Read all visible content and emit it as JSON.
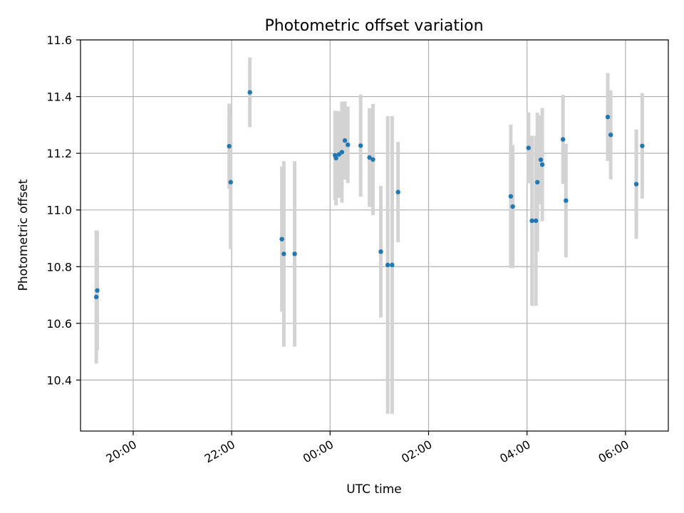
{
  "chart_data": {
    "type": "scatter",
    "title": "Photometric offset variation",
    "xlabel": "UTC time",
    "ylabel": "Photometric offset",
    "x_unit": "hours",
    "xlim": [
      -5.07,
      6.87
    ],
    "ylim": [
      10.22,
      11.6
    ],
    "grid": true,
    "x_ticks": [
      {
        "value": -4.0,
        "label": "20:00"
      },
      {
        "value": -2.0,
        "label": "22:00"
      },
      {
        "value": 0.0,
        "label": "00:00"
      },
      {
        "value": 2.0,
        "label": "02:00"
      },
      {
        "value": 4.0,
        "label": "04:00"
      },
      {
        "value": 6.0,
        "label": "06:00"
      }
    ],
    "y_ticks": [
      10.4,
      10.6,
      10.8,
      11.0,
      11.2,
      11.4,
      11.6
    ],
    "y_tick_labels": [
      "10.4",
      "10.6",
      "10.8",
      "11.0",
      "11.2",
      "11.4",
      "11.6"
    ],
    "point_color": "#1f77b4",
    "errorbar_color": "#d3d3d3",
    "points": [
      {
        "x": -4.75,
        "y": 10.693,
        "err": 0.235
      },
      {
        "x": -4.73,
        "y": 10.716,
        "err": 0.21
      },
      {
        "x": -2.05,
        "y": 11.225,
        "err": 0.15
      },
      {
        "x": -2.02,
        "y": 11.098,
        "err": 0.236
      },
      {
        "x": -1.63,
        "y": 11.415,
        "err": 0.123
      },
      {
        "x": -0.98,
        "y": 10.897,
        "err": 0.256
      },
      {
        "x": -0.94,
        "y": 10.845,
        "err": 0.327
      },
      {
        "x": -0.72,
        "y": 10.845,
        "err": 0.327
      },
      {
        "x": 0.1,
        "y": 11.193,
        "err": 0.157
      },
      {
        "x": 0.12,
        "y": 11.183,
        "err": 0.167
      },
      {
        "x": 0.18,
        "y": 11.196,
        "err": 0.153
      },
      {
        "x": 0.24,
        "y": 11.204,
        "err": 0.178
      },
      {
        "x": 0.3,
        "y": 11.245,
        "err": 0.138
      },
      {
        "x": 0.36,
        "y": 11.23,
        "err": 0.135
      },
      {
        "x": 0.62,
        "y": 11.227,
        "err": 0.18
      },
      {
        "x": 0.8,
        "y": 11.185,
        "err": 0.174
      },
      {
        "x": 0.87,
        "y": 11.178,
        "err": 0.196
      },
      {
        "x": 1.03,
        "y": 10.853,
        "err": 0.232
      },
      {
        "x": 1.17,
        "y": 10.806,
        "err": 0.525
      },
      {
        "x": 1.26,
        "y": 10.806,
        "err": 0.525
      },
      {
        "x": 1.38,
        "y": 11.063,
        "err": 0.177
      },
      {
        "x": 3.67,
        "y": 11.048,
        "err": 0.253
      },
      {
        "x": 3.71,
        "y": 11.012,
        "err": 0.217
      },
      {
        "x": 4.03,
        "y": 11.219,
        "err": 0.125
      },
      {
        "x": 4.1,
        "y": 10.962,
        "err": 0.3
      },
      {
        "x": 4.18,
        "y": 10.962,
        "err": 0.3
      },
      {
        "x": 4.21,
        "y": 11.098,
        "err": 0.245
      },
      {
        "x": 4.28,
        "y": 11.177,
        "err": 0.157
      },
      {
        "x": 4.31,
        "y": 11.16,
        "err": 0.2
      },
      {
        "x": 4.73,
        "y": 11.249,
        "err": 0.157
      },
      {
        "x": 4.79,
        "y": 11.033,
        "err": 0.2
      },
      {
        "x": 5.64,
        "y": 11.328,
        "err": 0.155
      },
      {
        "x": 5.7,
        "y": 11.265,
        "err": 0.157
      },
      {
        "x": 6.22,
        "y": 11.091,
        "err": 0.193
      },
      {
        "x": 6.34,
        "y": 11.226,
        "err": 0.186
      }
    ]
  }
}
